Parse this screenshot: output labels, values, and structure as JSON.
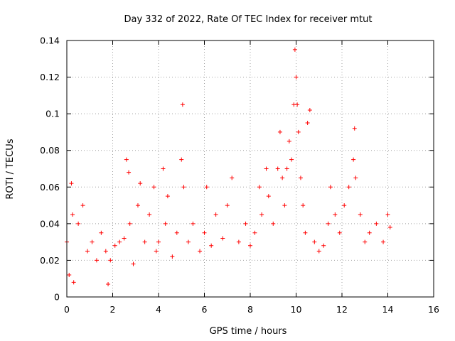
{
  "chart_data": {
    "type": "scatter",
    "title": "Day 332 of 2022, Rate Of TEC Index for receiver mtut",
    "xlabel": "GPS time / hours",
    "ylabel": "ROTI / TECUs",
    "xlim": [
      0,
      16
    ],
    "ylim": [
      0,
      0.14
    ],
    "x_ticks": [
      0,
      2,
      4,
      6,
      8,
      10,
      12,
      14,
      16
    ],
    "x_tick_labels": [
      "0",
      "2",
      "4",
      "6",
      "8",
      "10",
      "12",
      "14",
      "16"
    ],
    "y_ticks": [
      0,
      0.02,
      0.04,
      0.06,
      0.08,
      0.1,
      0.12,
      0.14
    ],
    "y_tick_labels": [
      "0",
      "0.02",
      "0.04",
      "0.06",
      "0.08",
      "0.1",
      "0.12",
      "0.14"
    ],
    "grid": true,
    "marker": "plus",
    "series_color": "#ff0000",
    "series": [
      {
        "name": "ROTI",
        "x": [
          0.0,
          0.1,
          0.2,
          0.25,
          0.3,
          0.5,
          0.7,
          0.9,
          1.1,
          1.3,
          1.5,
          1.7,
          1.8,
          1.9,
          2.1,
          2.3,
          2.5,
          2.6,
          2.7,
          2.75,
          2.9,
          3.1,
          3.2,
          3.4,
          3.6,
          3.8,
          3.9,
          4.0,
          4.2,
          4.3,
          4.4,
          4.6,
          4.8,
          5.0,
          5.05,
          5.1,
          5.3,
          5.5,
          5.8,
          6.0,
          6.1,
          6.3,
          6.5,
          6.8,
          7.0,
          7.2,
          7.5,
          7.8,
          8.0,
          8.2,
          8.4,
          8.5,
          8.7,
          8.8,
          9.0,
          9.2,
          9.3,
          9.4,
          9.5,
          9.6,
          9.7,
          9.8,
          9.9,
          9.95,
          10.0,
          10.05,
          10.1,
          10.2,
          10.3,
          10.4,
          10.5,
          10.6,
          10.8,
          11.0,
          11.2,
          11.4,
          11.5,
          11.7,
          11.9,
          12.1,
          12.3,
          12.5,
          12.55,
          12.6,
          12.8,
          13.0,
          13.2,
          13.5,
          13.8,
          14.0,
          14.1
        ],
        "y": [
          0.03,
          0.012,
          0.062,
          0.045,
          0.008,
          0.04,
          0.05,
          0.025,
          0.03,
          0.02,
          0.035,
          0.025,
          0.007,
          0.02,
          0.028,
          0.03,
          0.032,
          0.075,
          0.068,
          0.04,
          0.018,
          0.05,
          0.062,
          0.03,
          0.045,
          0.06,
          0.025,
          0.03,
          0.07,
          0.04,
          0.055,
          0.022,
          0.035,
          0.075,
          0.105,
          0.06,
          0.03,
          0.04,
          0.025,
          0.035,
          0.06,
          0.028,
          0.045,
          0.032,
          0.05,
          0.065,
          0.03,
          0.04,
          0.028,
          0.035,
          0.06,
          0.045,
          0.07,
          0.055,
          0.04,
          0.07,
          0.09,
          0.065,
          0.05,
          0.07,
          0.085,
          0.075,
          0.105,
          0.135,
          0.12,
          0.105,
          0.09,
          0.065,
          0.05,
          0.035,
          0.095,
          0.102,
          0.03,
          0.025,
          0.028,
          0.04,
          0.06,
          0.045,
          0.035,
          0.05,
          0.06,
          0.075,
          0.092,
          0.065,
          0.045,
          0.03,
          0.035,
          0.04,
          0.03,
          0.045,
          0.038
        ]
      }
    ]
  }
}
